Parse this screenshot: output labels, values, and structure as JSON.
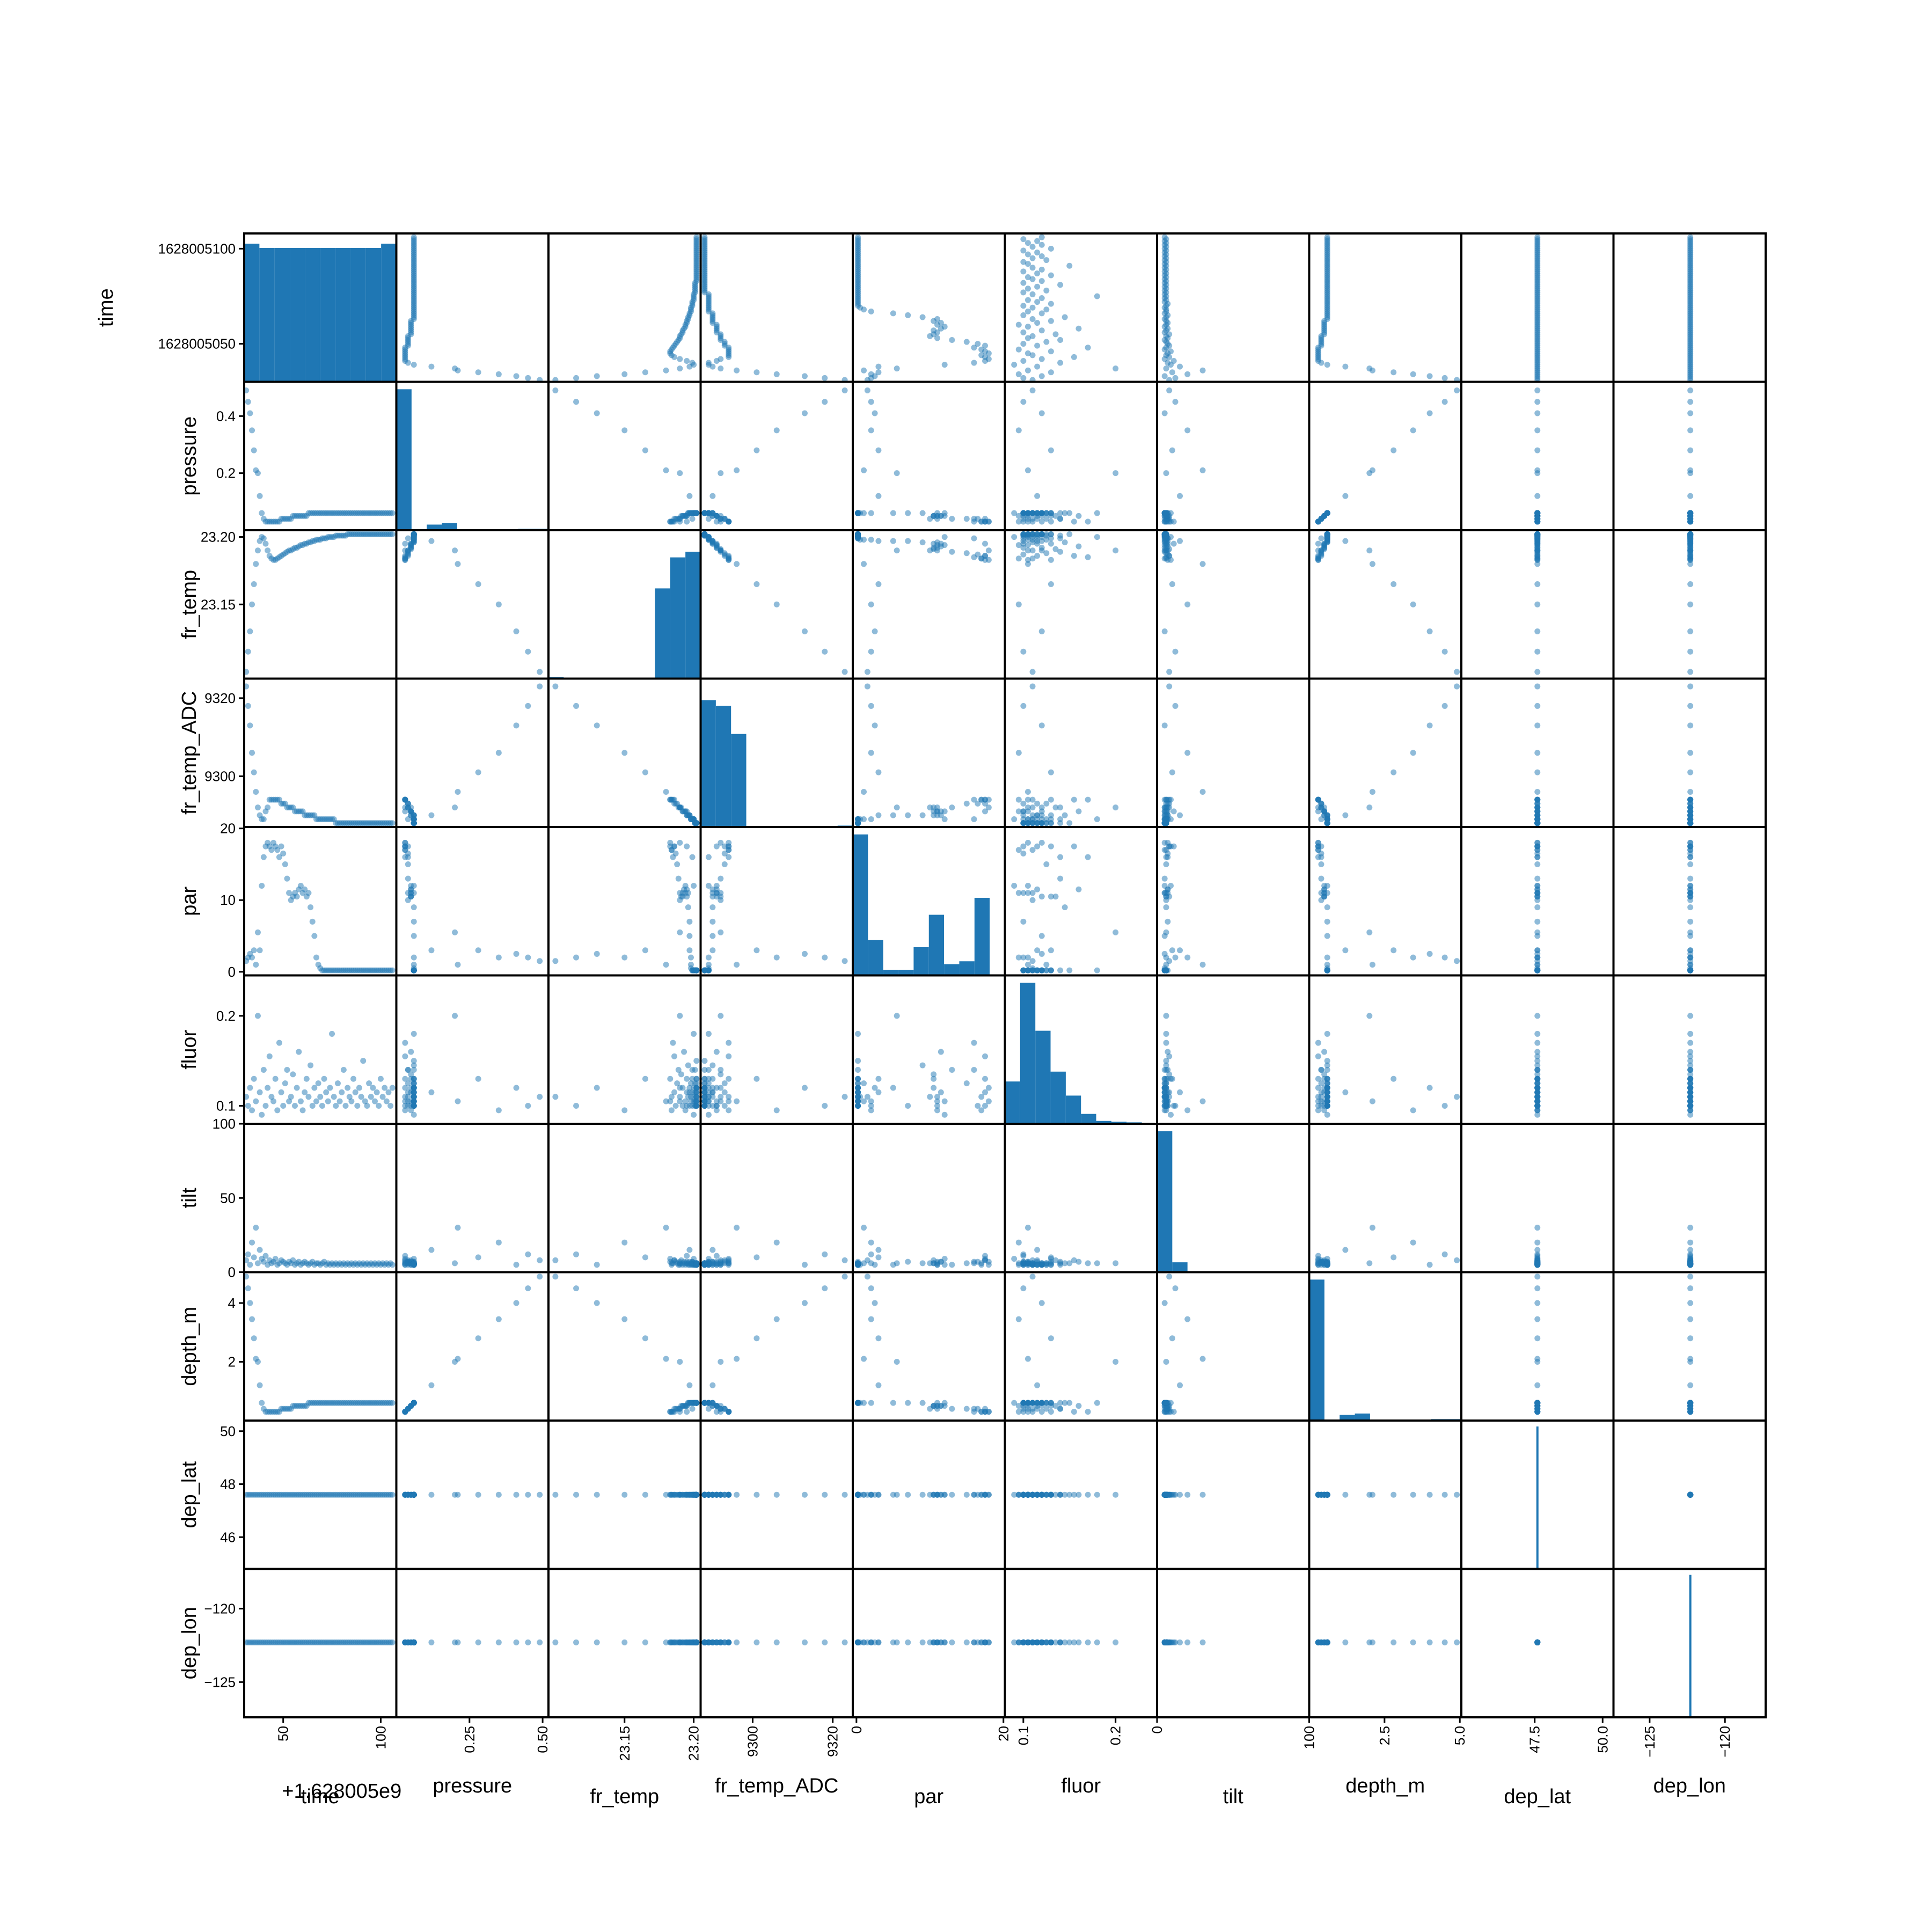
{
  "chart_data": {
    "type": "scatter_matrix",
    "variables": [
      "time",
      "pressure",
      "fr_temp",
      "fr_temp_ADC",
      "par",
      "fluor",
      "tilt",
      "depth_m",
      "dep_lat",
      "dep_lon"
    ],
    "diagonal": "histogram",
    "offset_texts": {
      "time": "+1.628005e9"
    },
    "colors": {
      "marker": "#1f77b4",
      "frame": "#000000"
    },
    "marker_alpha": 0.5,
    "ranges": {
      "time": [
        1628005030,
        1628005108
      ],
      "pressure": [
        0.0,
        0.52
      ],
      "fr_temp": [
        23.095,
        23.205
      ],
      "fr_temp_ADC": [
        9287,
        9325
      ],
      "par": [
        -0.5,
        20.2
      ],
      "fluor": [
        0.08,
        0.245
      ],
      "tilt": [
        0,
        100
      ],
      "depth_m": [
        0.0,
        5.05
      ],
      "dep_lat": [
        44.8,
        50.4
      ],
      "dep_lon": [
        -127.4,
        -117.3
      ]
    },
    "row_ticks": {
      "time": [
        {
          "v": 1628005050,
          "label": "1628005050"
        },
        {
          "v": 1628005100,
          "label": "1628005100"
        }
      ],
      "pressure": [
        {
          "v": 0.2,
          "label": "0.2"
        },
        {
          "v": 0.4,
          "label": "0.4"
        }
      ],
      "fr_temp": [
        {
          "v": 23.15,
          "label": "23.15"
        },
        {
          "v": 23.2,
          "label": "23.20"
        }
      ],
      "fr_temp_ADC": [
        {
          "v": 9300,
          "label": "9300"
        },
        {
          "v": 9320,
          "label": "9320"
        }
      ],
      "par": [
        {
          "v": 0,
          "label": "0"
        },
        {
          "v": 10,
          "label": "10"
        },
        {
          "v": 20,
          "label": "20"
        }
      ],
      "fluor": [
        {
          "v": 0.1,
          "label": "0.1"
        },
        {
          "v": 0.2,
          "label": "0.2"
        }
      ],
      "tilt": [
        {
          "v": 0,
          "label": "0"
        },
        {
          "v": 50,
          "label": "50"
        },
        {
          "v": 100,
          "label": "100"
        }
      ],
      "depth_m": [
        {
          "v": 2,
          "label": "2"
        },
        {
          "v": 4,
          "label": "4"
        }
      ],
      "dep_lat": [
        {
          "v": 46,
          "label": "46"
        },
        {
          "v": 48,
          "label": "48"
        },
        {
          "v": 50,
          "label": "50"
        }
      ],
      "dep_lon": [
        {
          "v": -125,
          "label": "−125"
        },
        {
          "v": -120,
          "label": "−120"
        }
      ]
    },
    "col_ticks": {
      "time": [
        {
          "v": 1628005050,
          "label": "50"
        },
        {
          "v": 1628005100,
          "label": "100"
        }
      ],
      "pressure": [
        {
          "v": 0.25,
          "label": "0.25"
        },
        {
          "v": 0.5,
          "label": "0.50"
        }
      ],
      "fr_temp": [
        {
          "v": 23.15,
          "label": "23.15"
        },
        {
          "v": 23.2,
          "label": "23.20"
        }
      ],
      "fr_temp_ADC": [
        {
          "v": 9300,
          "label": "9300"
        },
        {
          "v": 9320,
          "label": "9320"
        }
      ],
      "par": [
        {
          "v": 0,
          "label": "0"
        },
        {
          "v": 20,
          "label": "20"
        }
      ],
      "fluor": [
        {
          "v": 0.1,
          "label": "0.1"
        },
        {
          "v": 0.2,
          "label": "0.2"
        }
      ],
      "tilt": [
        {
          "v": 0,
          "label": "0"
        },
        {
          "v": 100,
          "label": "100"
        }
      ],
      "depth_m": [
        {
          "v": 2.5,
          "label": "2.5"
        },
        {
          "v": 5.0,
          "label": "5.0"
        }
      ],
      "dep_lat": [
        {
          "v": 47.5,
          "label": "47.5"
        },
        {
          "v": 50.0,
          "label": "50.0"
        }
      ],
      "dep_lon": [
        {
          "v": -125,
          "label": "−125"
        },
        {
          "v": -120,
          "label": "−120"
        }
      ]
    },
    "constants": {
      "dep_lat": 47.6,
      "dep_lon": -122.3
    },
    "histograms": {
      "time": [
        0.98,
        0.95,
        0.95,
        0.95,
        0.95,
        0.95,
        0.95,
        0.95,
        0.95,
        0.98
      ],
      "pressure": [
        1.0,
        0.0,
        0.04,
        0.05,
        0.0,
        0.0,
        0.0,
        0.0,
        0.01,
        0.01
      ],
      "fr_temp": [
        0.01,
        0.0,
        0.0,
        0.0,
        0.0,
        0.0,
        0.0,
        0.64,
        0.86,
        0.9
      ],
      "fr_temp_ADC": [
        0.9,
        0.86,
        0.66,
        0.0,
        0.0,
        0.0,
        0.0,
        0.0,
        0.0,
        0.01
      ],
      "par": [
        1.0,
        0.25,
        0.04,
        0.04,
        0.2,
        0.43,
        0.08,
        0.1,
        0.55,
        0.0
      ],
      "fluor": [
        0.3,
        1.0,
        0.66,
        0.37,
        0.2,
        0.07,
        0.02,
        0.015,
        0.01,
        0.0
      ],
      "tilt": [
        1.0,
        0.07,
        0.0,
        0.0,
        0.0,
        0.0,
        0.0,
        0.0,
        0.0,
        0.0
      ],
      "depth_m": [
        1.0,
        0.0,
        0.04,
        0.05,
        0.0,
        0.0,
        0.0,
        0.0,
        0.01,
        0.01
      ]
    },
    "samples": {
      "time": [
        1628005031,
        1628005032,
        1628005033,
        1628005034,
        1628005035,
        1628005036,
        1628005037,
        1628005038,
        1628005039,
        1628005040,
        1628005041,
        1628005042,
        1628005043,
        1628005044,
        1628005045,
        1628005046,
        1628005047,
        1628005048,
        1628005049,
        1628005050,
        1628005051,
        1628005052,
        1628005053,
        1628005054,
        1628005055,
        1628005056,
        1628005057,
        1628005058,
        1628005059,
        1628005060,
        1628005061,
        1628005062,
        1628005063,
        1628005064,
        1628005065,
        1628005066,
        1628005067,
        1628005068,
        1628005069,
        1628005070,
        1628005071,
        1628005072,
        1628005073,
        1628005074,
        1628005075,
        1628005076,
        1628005077,
        1628005078,
        1628005079,
        1628005080,
        1628005081,
        1628005082,
        1628005083,
        1628005084,
        1628005085,
        1628005086,
        1628005087,
        1628005088,
        1628005089,
        1628005090,
        1628005091,
        1628005092,
        1628005093,
        1628005094,
        1628005095,
        1628005096,
        1628005097,
        1628005098,
        1628005099,
        1628005100,
        1628005101,
        1628005102,
        1628005103,
        1628005104,
        1628005105,
        1628005106
      ],
      "pressure": [
        0.49,
        0.45,
        0.41,
        0.35,
        0.28,
        0.21,
        0.2,
        0.12,
        0.06,
        0.04,
        0.03,
        0.03,
        0.03,
        0.03,
        0.03,
        0.03,
        0.03,
        0.03,
        0.04,
        0.04,
        0.04,
        0.04,
        0.04,
        0.04,
        0.05,
        0.05,
        0.05,
        0.05,
        0.05,
        0.05,
        0.05,
        0.05,
        0.06,
        0.06,
        0.06,
        0.06,
        0.06,
        0.06,
        0.06,
        0.06,
        0.06,
        0.06,
        0.06,
        0.06,
        0.06,
        0.06,
        0.06,
        0.06,
        0.06,
        0.06,
        0.06,
        0.06,
        0.06,
        0.06,
        0.06,
        0.06,
        0.06,
        0.06,
        0.06,
        0.06,
        0.06,
        0.06,
        0.06,
        0.06,
        0.06,
        0.06,
        0.06,
        0.06,
        0.06,
        0.06,
        0.06,
        0.06,
        0.06,
        0.06,
        0.06,
        0.06
      ],
      "fr_temp": [
        23.1,
        23.115,
        23.13,
        23.15,
        23.165,
        23.18,
        23.19,
        23.197,
        23.2,
        23.199,
        23.195,
        23.19,
        23.186,
        23.184,
        23.183,
        23.183,
        23.184,
        23.185,
        23.186,
        23.187,
        23.188,
        23.189,
        23.19,
        23.19,
        23.191,
        23.192,
        23.192,
        23.193,
        23.194,
        23.194,
        23.195,
        23.195,
        23.196,
        23.196,
        23.197,
        23.197,
        23.198,
        23.198,
        23.198,
        23.199,
        23.199,
        23.199,
        23.2,
        23.2,
        23.2,
        23.2,
        23.201,
        23.201,
        23.201,
        23.201,
        23.201,
        23.201,
        23.202,
        23.202,
        23.202,
        23.202,
        23.202,
        23.202,
        23.202,
        23.202,
        23.202,
        23.202,
        23.202,
        23.202,
        23.202,
        23.202,
        23.202,
        23.202,
        23.202,
        23.202,
        23.202,
        23.202,
        23.202,
        23.202,
        23.202,
        23.202
      ],
      "fr_temp_ADC": [
        9323,
        9318,
        9313,
        9306,
        9301,
        9296,
        9292,
        9290,
        9289,
        9289,
        9291,
        9292,
        9294,
        9294,
        9294,
        9294,
        9294,
        9294,
        9293,
        9293,
        9293,
        9292,
        9292,
        9292,
        9292,
        9291,
        9291,
        9291,
        9291,
        9291,
        9290,
        9290,
        9290,
        9290,
        9290,
        9290,
        9289,
        9289,
        9289,
        9289,
        9289,
        9289,
        9289,
        9289,
        9289,
        9289,
        9288,
        9288,
        9288,
        9288,
        9288,
        9288,
        9288,
        9288,
        9288,
        9288,
        9288,
        9288,
        9288,
        9288,
        9288,
        9288,
        9288,
        9288,
        9288,
        9288,
        9288,
        9288,
        9288,
        9288,
        9288,
        9288,
        9288,
        9288,
        9288,
        9288
      ],
      "par": [
        1.5,
        2.0,
        2.5,
        2.0,
        3.0,
        1.0,
        5.5,
        3.0,
        12.0,
        16.0,
        17.5,
        18.0,
        17.5,
        17.0,
        18.0,
        17.5,
        17.0,
        16.0,
        17.5,
        16.5,
        15.0,
        13.0,
        11.0,
        10.0,
        10.5,
        11.0,
        10.5,
        11.5,
        12.0,
        11.0,
        11.5,
        10.5,
        11.0,
        9.0,
        7.0,
        5.0,
        2.0,
        1.0,
        0.5,
        0.2,
        0.2,
        0.2,
        0.2,
        0.2,
        0.2,
        0.2,
        0.2,
        0.2,
        0.2,
        0.2,
        0.2,
        0.2,
        0.2,
        0.2,
        0.2,
        0.2,
        0.2,
        0.2,
        0.2,
        0.2,
        0.2,
        0.2,
        0.2,
        0.2,
        0.2,
        0.2,
        0.2,
        0.2,
        0.2,
        0.2,
        0.2,
        0.2,
        0.2,
        0.2,
        0.2,
        0.2
      ],
      "fluor": [
        0.11,
        0.1,
        0.12,
        0.095,
        0.13,
        0.105,
        0.2,
        0.115,
        0.09,
        0.14,
        0.1,
        0.12,
        0.155,
        0.11,
        0.105,
        0.13,
        0.095,
        0.17,
        0.115,
        0.1,
        0.125,
        0.14,
        0.105,
        0.11,
        0.135,
        0.1,
        0.12,
        0.16,
        0.105,
        0.095,
        0.115,
        0.13,
        0.11,
        0.145,
        0.1,
        0.12,
        0.105,
        0.125,
        0.11,
        0.1,
        0.13,
        0.115,
        0.105,
        0.12,
        0.18,
        0.11,
        0.1,
        0.125,
        0.105,
        0.115,
        0.14,
        0.1,
        0.12,
        0.11,
        0.105,
        0.13,
        0.115,
        0.1,
        0.12,
        0.11,
        0.15,
        0.105,
        0.1,
        0.125,
        0.11,
        0.12,
        0.105,
        0.115,
        0.1,
        0.13,
        0.11,
        0.12,
        0.105,
        0.115,
        0.1,
        0.12
      ],
      "tilt": [
        8,
        12,
        5,
        20,
        10,
        30,
        6,
        15,
        9,
        7,
        11,
        5,
        8,
        6,
        7,
        9,
        5,
        6,
        8,
        7,
        6,
        5,
        7,
        6,
        8,
        5,
        6,
        7,
        5,
        6,
        7,
        6,
        5,
        6,
        7,
        5,
        6,
        6,
        5,
        6,
        7,
        5,
        6,
        5,
        6,
        5,
        6,
        5,
        6,
        5,
        6,
        5,
        6,
        5,
        6,
        5,
        6,
        5,
        6,
        5,
        6,
        5,
        6,
        5,
        6,
        5,
        6,
        5,
        6,
        5,
        6,
        5,
        6,
        5,
        6,
        5
      ],
      "depth_m": [
        4.9,
        4.5,
        4.0,
        3.45,
        2.8,
        2.1,
        2.0,
        1.2,
        0.6,
        0.4,
        0.3,
        0.3,
        0.3,
        0.3,
        0.3,
        0.3,
        0.3,
        0.3,
        0.4,
        0.4,
        0.4,
        0.4,
        0.4,
        0.4,
        0.5,
        0.5,
        0.5,
        0.5,
        0.5,
        0.5,
        0.5,
        0.5,
        0.6,
        0.6,
        0.6,
        0.6,
        0.6,
        0.6,
        0.6,
        0.6,
        0.6,
        0.6,
        0.6,
        0.6,
        0.6,
        0.6,
        0.6,
        0.6,
        0.6,
        0.6,
        0.6,
        0.6,
        0.6,
        0.6,
        0.6,
        0.6,
        0.6,
        0.6,
        0.6,
        0.6,
        0.6,
        0.6,
        0.6,
        0.6,
        0.6,
        0.6,
        0.6,
        0.6,
        0.6,
        0.6,
        0.6,
        0.6,
        0.6,
        0.6,
        0.6,
        0.6
      ]
    }
  }
}
